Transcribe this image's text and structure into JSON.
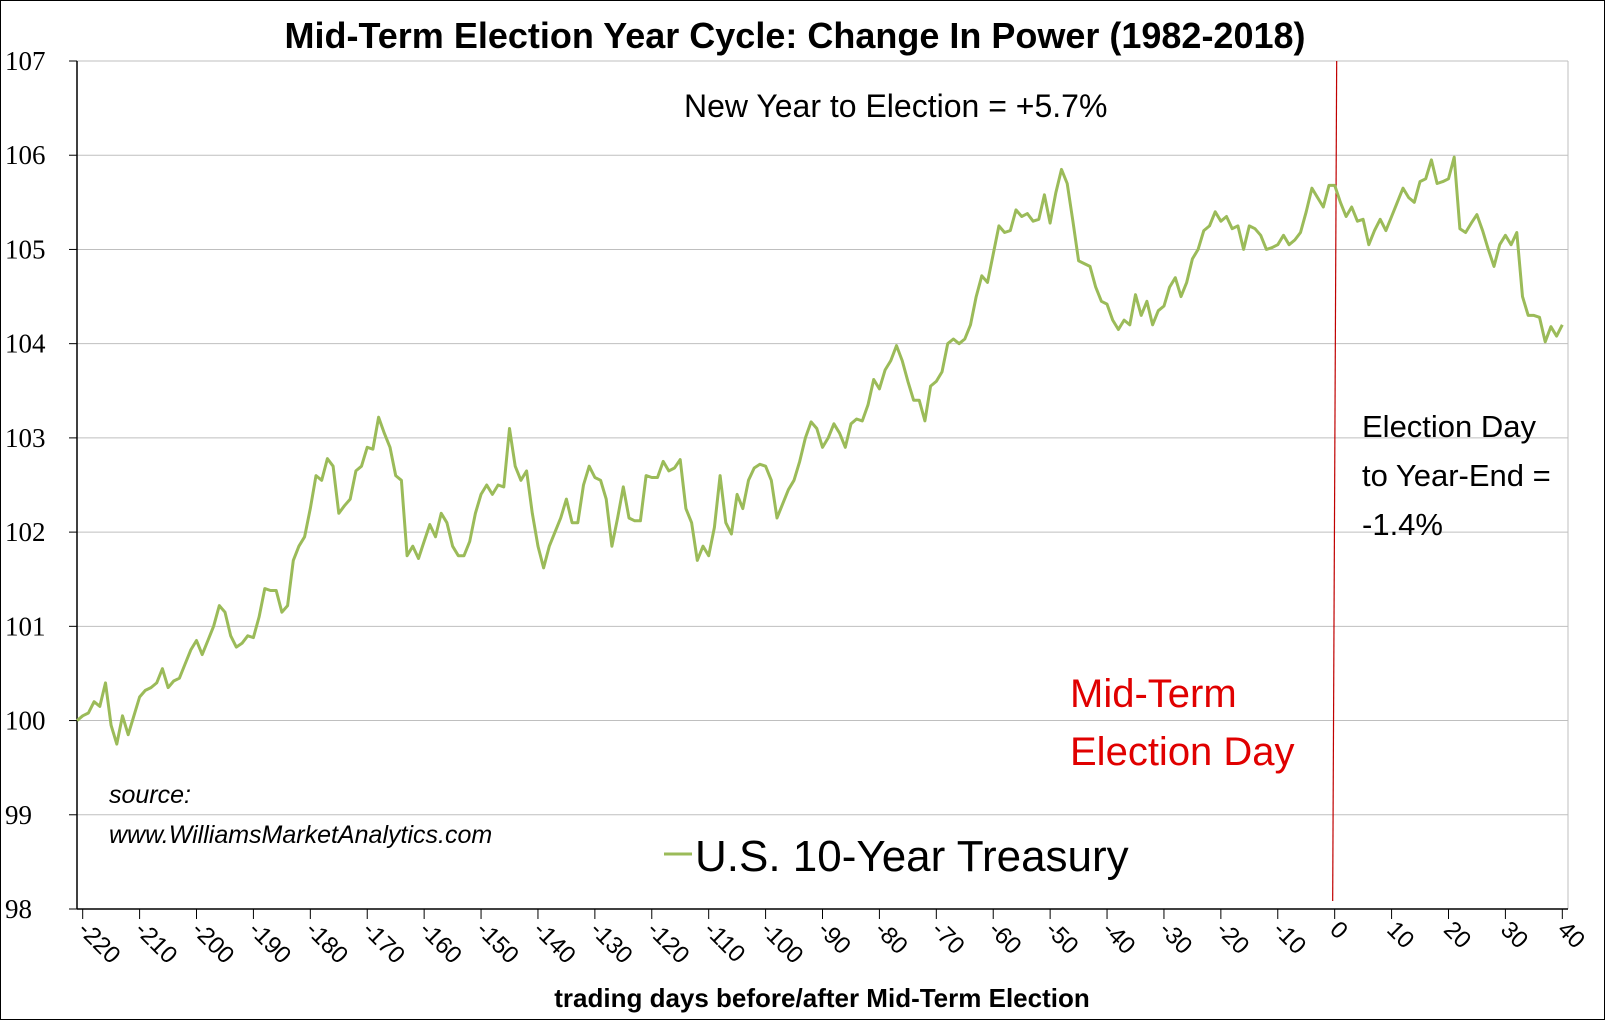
{
  "chart_data": {
    "type": "line",
    "title": "Mid-Term Election Year Cycle: Change In Power (1982-2018)",
    "x_label": "trading days before/after Mid-Term Election",
    "xlim": [
      -221,
      41
    ],
    "xticks": [
      -220,
      -210,
      -200,
      -190,
      -180,
      -170,
      -160,
      -150,
      -140,
      -130,
      -120,
      -110,
      -100,
      -90,
      -80,
      -70,
      -60,
      -50,
      -40,
      -30,
      -20,
      -10,
      0,
      10,
      20,
      30,
      40
    ],
    "ylim": [
      98,
      107
    ],
    "yticks": [
      98,
      99,
      100,
      101,
      102,
      103,
      104,
      105,
      106,
      107
    ],
    "grid": true,
    "vline": {
      "value": 0,
      "color": "#c00000"
    },
    "annotations": [
      {
        "lines": [
          "New Year to Election = +5.7%"
        ],
        "color": "#000000"
      },
      {
        "lines": [
          "Election Day",
          "to Year-End =",
          "-1.4%"
        ],
        "color": "#000000"
      },
      {
        "lines": [
          "Mid-Term",
          "Election Day"
        ],
        "color": "#e00000"
      },
      {
        "lines": [
          "source:",
          "www.WilliamsMarketAnalytics.com"
        ],
        "color": "#000000"
      }
    ],
    "x": [
      -221,
      -220,
      -219,
      -218,
      -217,
      -216,
      -215,
      -214,
      -213,
      -212,
      -211,
      -210,
      -209,
      -208,
      -207,
      -206,
      -205,
      -204,
      -203,
      -202,
      -201,
      -200,
      -199,
      -198,
      -197,
      -196,
      -195,
      -194,
      -193,
      -192,
      -191,
      -190,
      -189,
      -188,
      -187,
      -186,
      -185,
      -184,
      -183,
      -182,
      -181,
      -180,
      -179,
      -178,
      -177,
      -176,
      -175,
      -174,
      -173,
      -172,
      -171,
      -170,
      -169,
      -168,
      -167,
      -166,
      -165,
      -164,
      -163,
      -162,
      -161,
      -160,
      -159,
      -158,
      -157,
      -156,
      -155,
      -154,
      -153,
      -152,
      -151,
      -150,
      -149,
      -148,
      -147,
      -146,
      -145,
      -144,
      -143,
      -142,
      -141,
      -140,
      -139,
      -138,
      -137,
      -136,
      -135,
      -134,
      -133,
      -132,
      -131,
      -130,
      -129,
      -128,
      -127,
      -126,
      -125,
      -124,
      -123,
      -122,
      -121,
      -120,
      -119,
      -118,
      -117,
      -116,
      -115,
      -114,
      -113,
      -112,
      -111,
      -110,
      -109,
      -108,
      -107,
      -106,
      -105,
      -104,
      -103,
      -102,
      -101,
      -100,
      -99,
      -98,
      -97,
      -96,
      -95,
      -94,
      -93,
      -92,
      -91,
      -90,
      -89,
      -88,
      -87,
      -86,
      -85,
      -84,
      -83,
      -82,
      -81,
      -80,
      -79,
      -78,
      -77,
      -76,
      -75,
      -74,
      -73,
      -72,
      -71,
      -70,
      -69,
      -68,
      -67,
      -66,
      -65,
      -64,
      -63,
      -62,
      -61,
      -60,
      -59,
      -58,
      -57,
      -56,
      -55,
      -54,
      -53,
      -52,
      -51,
      -50,
      -49,
      -48,
      -47,
      -46,
      -45,
      -44,
      -43,
      -42,
      -41,
      -40,
      -39,
      -38,
      -37,
      -36,
      -35,
      -34,
      -33,
      -32,
      -31,
      -30,
      -29,
      -28,
      -27,
      -26,
      -25,
      -24,
      -23,
      -22,
      -21,
      -20,
      -19,
      -18,
      -17,
      -16,
      -15,
      -14,
      -13,
      -12,
      -11,
      -10,
      -9,
      -8,
      -7,
      -6,
      -5,
      -4,
      -3,
      -2,
      -1,
      0,
      1,
      2,
      3,
      4,
      5,
      6,
      7,
      8,
      9,
      10,
      11,
      12,
      13,
      14,
      15,
      16,
      17,
      18,
      19,
      20,
      21,
      22,
      23,
      24,
      25,
      26,
      27,
      28,
      29,
      30,
      31,
      32,
      33,
      34,
      35,
      36,
      37,
      38,
      39,
      40
    ],
    "series": [
      {
        "name": "U.S. 10-Year Treasury",
        "color": "#9bbb59",
        "values": [
          100.0,
          100.05,
          100.08,
          100.2,
          100.15,
          100.4,
          99.95,
          99.75,
          100.05,
          99.85,
          100.05,
          100.25,
          100.32,
          100.35,
          100.4,
          100.55,
          100.35,
          100.42,
          100.45,
          100.6,
          100.75,
          100.85,
          100.7,
          100.85,
          101.0,
          101.22,
          101.15,
          100.9,
          100.78,
          100.82,
          100.9,
          100.88,
          101.1,
          101.4,
          101.38,
          101.38,
          101.15,
          101.22,
          101.7,
          101.85,
          101.95,
          102.25,
          102.6,
          102.55,
          102.78,
          102.7,
          102.2,
          102.28,
          102.35,
          102.65,
          102.7,
          102.9,
          102.88,
          103.22,
          103.05,
          102.9,
          102.6,
          102.55,
          101.75,
          101.85,
          101.72,
          101.9,
          102.08,
          101.95,
          102.2,
          102.1,
          101.85,
          101.75,
          101.75,
          101.9,
          102.2,
          102.4,
          102.5,
          102.4,
          102.5,
          102.48,
          103.1,
          102.7,
          102.55,
          102.65,
          102.2,
          101.85,
          101.62,
          101.85,
          102.0,
          102.15,
          102.35,
          102.1,
          102.1,
          102.5,
          102.7,
          102.58,
          102.55,
          102.35,
          101.85,
          102.15,
          102.48,
          102.15,
          102.12,
          102.12,
          102.6,
          102.58,
          102.58,
          102.75,
          102.65,
          102.68,
          102.77,
          102.25,
          102.1,
          101.7,
          101.85,
          101.75,
          102.05,
          102.6,
          102.1,
          101.98,
          102.4,
          102.25,
          102.55,
          102.68,
          102.72,
          102.7,
          102.55,
          102.15,
          102.3,
          102.45,
          102.55,
          102.75,
          103.0,
          103.17,
          103.1,
          102.9,
          103.0,
          103.15,
          103.05,
          102.9,
          103.15,
          103.2,
          103.18,
          103.35,
          103.62,
          103.52,
          103.72,
          103.82,
          103.98,
          103.82,
          103.6,
          103.4,
          103.4,
          103.18,
          103.55,
          103.6,
          103.7,
          104.0,
          104.05,
          104.0,
          104.05,
          104.2,
          104.5,
          104.72,
          104.65,
          104.95,
          105.25,
          105.18,
          105.2,
          105.42,
          105.35,
          105.38,
          105.3,
          105.32,
          105.58,
          105.28,
          105.6,
          105.85,
          105.7,
          105.3,
          104.88,
          104.85,
          104.82,
          104.6,
          104.45,
          104.42,
          104.25,
          104.15,
          104.25,
          104.2,
          104.52,
          104.3,
          104.45,
          104.2,
          104.35,
          104.4,
          104.6,
          104.7,
          104.5,
          104.65,
          104.9,
          105.0,
          105.2,
          105.25,
          105.4,
          105.3,
          105.35,
          105.22,
          105.25,
          105.0,
          105.25,
          105.22,
          105.15,
          105.0,
          105.02,
          105.05,
          105.15,
          105.05,
          105.1,
          105.18,
          105.4,
          105.65,
          105.55,
          105.45,
          105.68,
          105.68,
          105.5,
          105.35,
          105.45,
          105.3,
          105.32,
          105.05,
          105.2,
          105.32,
          105.2,
          105.35,
          105.5,
          105.65,
          105.55,
          105.5,
          105.72,
          105.75,
          105.95,
          105.7,
          105.72,
          105.75,
          105.98,
          105.22,
          105.18,
          105.28,
          105.37,
          105.2,
          105.0,
          104.82,
          105.05,
          105.15,
          105.05,
          105.18,
          104.5,
          104.3,
          104.3,
          104.28,
          104.02,
          104.18,
          104.08,
          104.2
        ]
      }
    ]
  }
}
